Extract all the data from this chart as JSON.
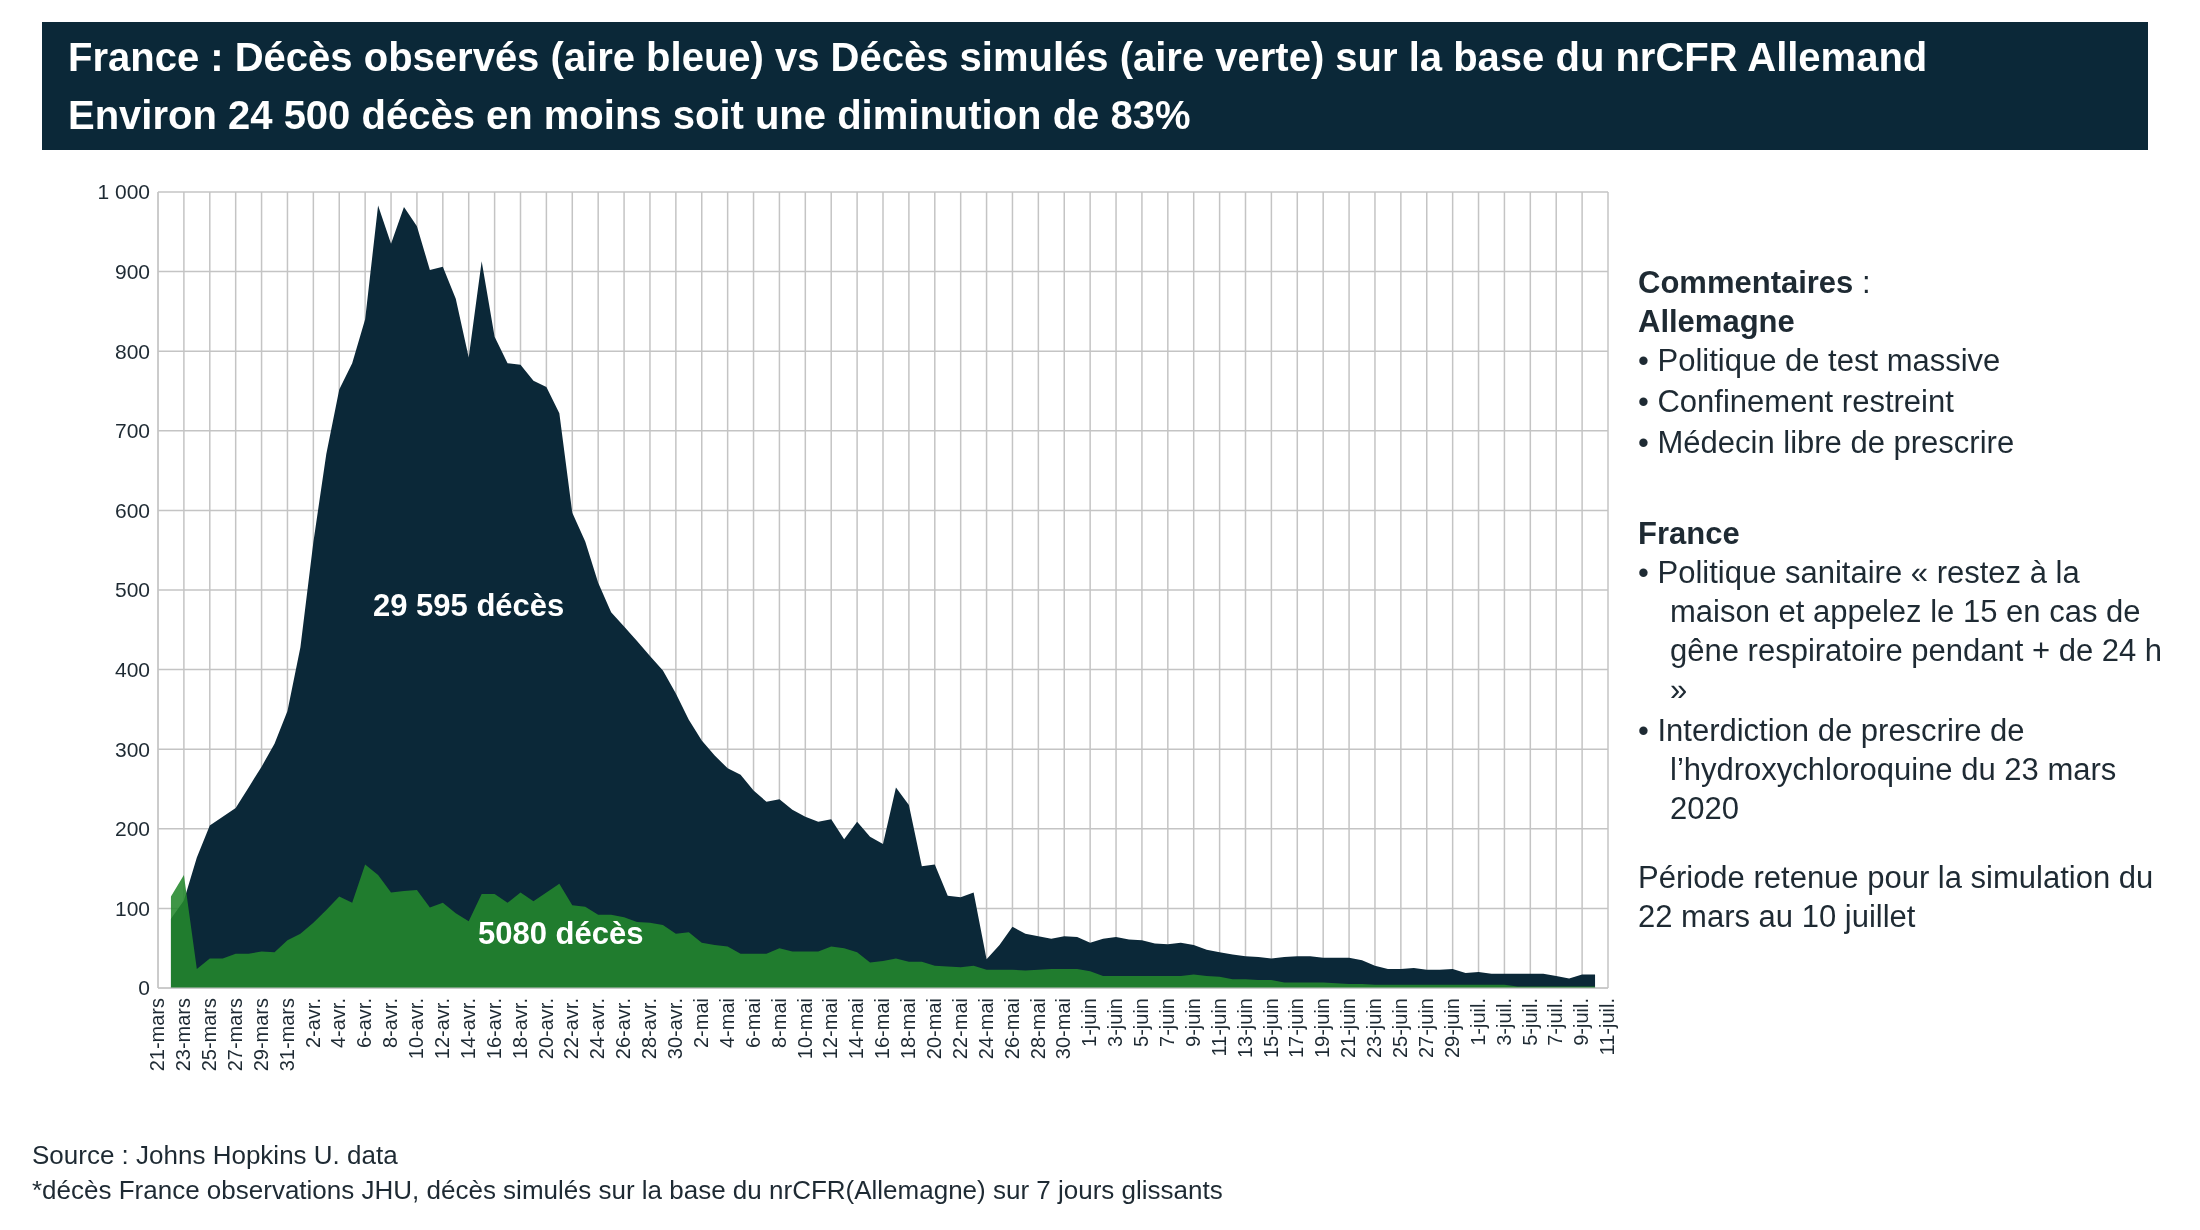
{
  "chart_data": {
    "type": "area",
    "title": "France : Décès observés (aire bleue) vs Décès simulés (aire verte) sur la base du nrCFR Allemand",
    "subtitle": "Environ 24 500 décès en moins soit une diminution de 83%",
    "categories": [
      "21-mars",
      null,
      "23-mars",
      null,
      "25-mars",
      null,
      "27-mars",
      null,
      "29-mars",
      null,
      "31-mars",
      null,
      "2-avr.",
      null,
      "4-avr.",
      null,
      "6-avr.",
      null,
      "8-avr.",
      null,
      "10-avr.",
      null,
      "12-avr.",
      null,
      "14-avr.",
      null,
      "16-avr.",
      null,
      "18-avr.",
      null,
      "20-avr.",
      null,
      "22-avr.",
      null,
      "24-avr.",
      null,
      "26-avr.",
      null,
      "28-avr.",
      null,
      "30-avr.",
      null,
      "2-mai",
      null,
      "4-mai",
      null,
      "6-mai",
      null,
      "8-mai",
      null,
      "10-mai",
      null,
      "12-mai",
      null,
      "14-mai",
      null,
      "16-mai",
      null,
      "18-mai",
      null,
      "20-mai",
      null,
      "22-mai",
      null,
      "24-mai",
      null,
      "26-mai",
      null,
      "28-mai",
      null,
      "30-mai",
      null,
      "1-juin",
      null,
      "3-juin",
      null,
      "5-juin",
      null,
      "7-juin",
      null,
      "9-juin",
      null,
      "11-juin",
      null,
      "13-juin",
      null,
      "15-juin",
      null,
      "17-juin",
      null,
      "19-juin",
      null,
      "21-juin",
      null,
      "23-juin",
      null,
      "25-juin",
      null,
      "27-juin",
      null,
      "29-juin",
      null,
      "1-juil.",
      null,
      "3-juil.",
      null,
      "5-juil.",
      null,
      "7-juil.",
      null,
      "9-juil.",
      null,
      "11-juil."
    ],
    "series": [
      {
        "color": "#0b2838",
        "values": [
          null,
          87,
          110,
          164,
          204,
          215,
          226,
          252,
          278,
          307,
          348,
          428,
          560,
          671,
          752,
          785,
          840,
          983,
          935,
          981,
          957,
          902,
          906,
          866,
          792,
          913,
          818,
          785,
          783,
          763,
          755,
          722,
          597,
          561,
          509,
          472,
          454,
          436,
          417,
          399,
          370,
          337,
          311,
          292,
          276,
          268,
          248,
          234,
          237,
          224,
          215,
          209,
          212,
          187,
          209,
          190,
          181,
          252,
          230,
          153,
          155,
          116,
          114,
          120,
          36,
          54,
          77,
          68,
          65,
          62,
          65,
          64,
          57,
          62,
          64,
          61,
          60,
          56,
          55,
          57,
          54,
          48,
          45,
          42,
          40,
          39,
          37,
          39,
          40,
          40,
          38,
          38,
          38,
          35,
          28,
          24,
          24,
          25,
          23,
          23,
          24,
          19,
          20,
          18,
          18,
          18,
          18,
          18,
          15,
          12,
          17,
          17,
          null
        ]
      },
      {
        "color": "#23882c",
        "values": [
          null,
          115,
          142,
          24,
          37,
          37,
          43,
          43,
          46,
          45,
          60,
          68,
          82,
          98,
          115,
          107,
          155,
          142,
          120,
          122,
          123,
          101,
          107,
          94,
          84,
          118,
          118,
          107,
          120,
          109,
          120,
          131,
          104,
          102,
          92,
          92,
          89,
          83,
          82,
          79,
          68,
          70,
          57,
          54,
          52,
          43,
          43,
          43,
          50,
          46,
          46,
          46,
          52,
          50,
          45,
          32,
          34,
          37,
          33,
          33,
          28,
          27,
          26,
          28,
          23,
          23,
          23,
          22,
          23,
          24,
          24,
          24,
          21,
          15,
          15,
          15,
          15,
          15,
          15,
          15,
          17,
          15,
          14,
          11,
          11,
          10,
          10,
          7,
          7,
          7,
          7,
          6,
          5,
          5,
          4,
          4,
          4,
          4,
          4,
          4,
          4,
          4,
          4,
          4,
          4,
          2,
          2,
          2,
          2,
          2,
          2,
          2,
          null
        ]
      }
    ],
    "ylim": [
      0,
      1000
    ],
    "yticks": [
      0,
      100,
      200,
      300,
      400,
      500,
      600,
      700,
      800,
      900,
      {
        "value": 1000,
        "label": "1 000"
      }
    ],
    "grid": true,
    "legend": false,
    "annotations": [
      "29 595 décès",
      "5080 décès",
      "Commentaires :",
      "Allemagne",
      "• Politique de test massive",
      "• Confinement restreint",
      "• Médecin libre de prescrire",
      "France",
      "• Politique sanitaire « restez à la maison et appelez le 15 en cas de gêne respiratoire pendant + de 24 h »",
      "• Interdiction de prescrire de l’hydroxychloroquine du 23 mars 2020",
      "Période retenue pour la simulation du 22 mars au 10 juillet",
      "Source : Johns Hopkins U. data",
      "*décès France observations JHU, décès simulés sur la base du nrCFR(Allemagne) sur 7 jours glissants"
    ]
  }
}
